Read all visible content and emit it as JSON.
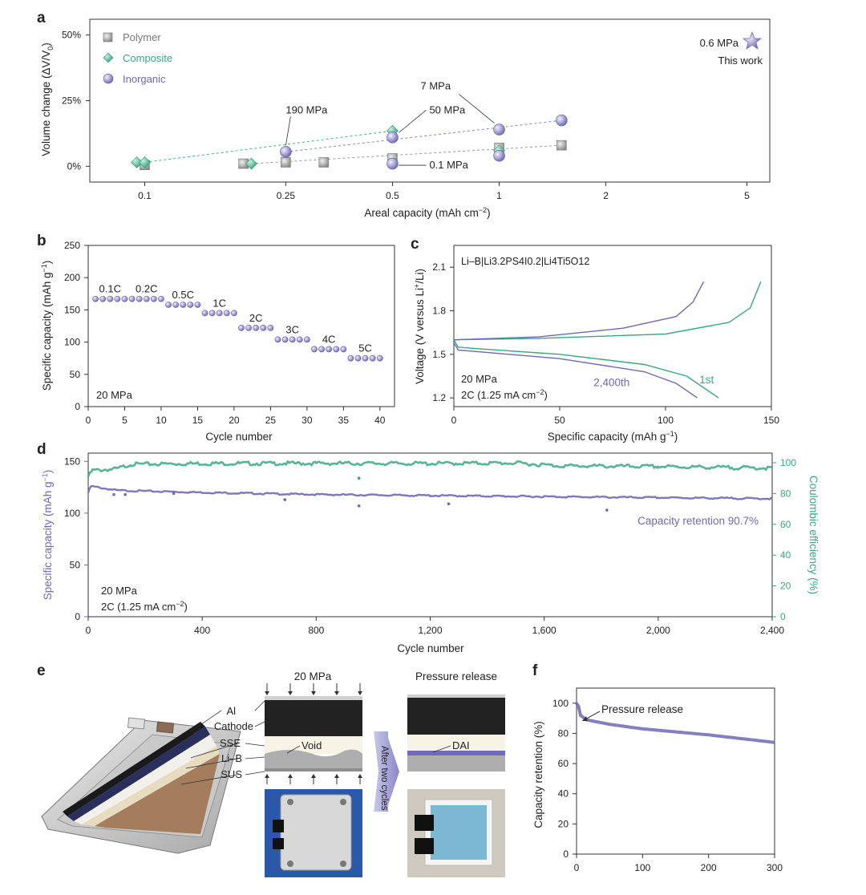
{
  "colors": {
    "polymer": "#9a9a9a",
    "composite": "#3db58f",
    "inorganic": "#8a84c8",
    "thiswork": "#8a84c8",
    "green": "#3aa87e",
    "purple": "#6f68b4"
  },
  "panel_labels": {
    "a": "a",
    "b": "b",
    "c": "c",
    "d": "d",
    "e": "e",
    "f": "f"
  },
  "chart_data": [
    {
      "panel": "a",
      "type": "scatter",
      "xlabel": "Areal capacity (mAh cm",
      "xlabel_sup": "−2",
      "xlabel_end": ")",
      "ylabel": "Volume change (ΔV/V",
      "ylabel_sub": "0",
      "ylabel_end": ")",
      "xscale": "log",
      "xticks": [
        0.1,
        0.25,
        0.5,
        1,
        2,
        5
      ],
      "xtick_labels": [
        "0.1",
        "0.25",
        "0.5",
        "1",
        "2",
        "5"
      ],
      "yticks": [
        0,
        25,
        50
      ],
      "ytick_labels": [
        "0%",
        "25%",
        "50%"
      ],
      "xlim": [
        0.07,
        5.8
      ],
      "ylim": [
        -6,
        56
      ],
      "legend": [
        {
          "name": "Polymer",
          "marker": "square"
        },
        {
          "name": "Composite",
          "marker": "diamond"
        },
        {
          "name": "Inorganic",
          "marker": "circle"
        }
      ],
      "series": [
        {
          "name": "Polymer",
          "points": [
            [
              0.1,
              0.5
            ],
            [
              0.19,
              1
            ],
            [
              0.25,
              1.5
            ],
            [
              0.32,
              1.5
            ],
            [
              0.5,
              3
            ],
            [
              1.0,
              7
            ],
            [
              1.5,
              8
            ]
          ]
        },
        {
          "name": "Composite",
          "points": [
            [
              0.095,
              1.5
            ],
            [
              0.1,
              1.5
            ],
            [
              0.2,
              1
            ],
            [
              0.5,
              13.5
            ],
            [
              1.0,
              6
            ]
          ]
        },
        {
          "name": "Inorganic",
          "points": [
            [
              0.25,
              5.5
            ],
            [
              0.5,
              11
            ],
            [
              0.5,
              1
            ],
            [
              1.0,
              4
            ],
            [
              1.0,
              14
            ],
            [
              1.5,
              17.5
            ]
          ]
        }
      ],
      "trend_lines": [
        {
          "color": "composite",
          "from": [
            0.1,
            1.5
          ],
          "to": [
            0.5,
            13.5
          ]
        },
        {
          "color": "inorganic",
          "from": [
            0.25,
            5.5
          ],
          "to": [
            1.5,
            17.5
          ]
        },
        {
          "color": "polymer",
          "from": [
            0.2,
            1
          ],
          "to": [
            1.5,
            8
          ]
        }
      ],
      "annotations": [
        {
          "text": "190 MPa",
          "x": 0.25,
          "y": 5.5
        },
        {
          "text": "7 MPa",
          "x": 1.0,
          "y": 14
        },
        {
          "text": "50 MPa",
          "x": 0.5,
          "y": 11
        },
        {
          "text": "0.1 MPa",
          "x": 0.5,
          "y": 1
        }
      ],
      "this_work": {
        "label": "0.6 MPa",
        "sublabel": "This work",
        "value": 0.6
      }
    },
    {
      "panel": "b",
      "type": "scatter",
      "xlabel": "Cycle number",
      "ylabel": "Specific capacity (mAh g",
      "ylabel_sup": "−1",
      "ylabel_end": ")",
      "xticks": [
        0,
        5,
        10,
        15,
        20,
        25,
        30,
        35,
        40
      ],
      "yticks": [
        0,
        50,
        100,
        150,
        200,
        250
      ],
      "xlim": [
        0,
        42
      ],
      "ylim": [
        0,
        250
      ],
      "condition": "20 MPa",
      "rate_groups": [
        {
          "label": "0.1C",
          "start": 1,
          "end": 5,
          "value": 167
        },
        {
          "label": "0.2C",
          "start": 6,
          "end": 10,
          "value": 167
        },
        {
          "label": "0.5C",
          "start": 11,
          "end": 15,
          "value": 158
        },
        {
          "label": "1C",
          "start": 16,
          "end": 20,
          "value": 145
        },
        {
          "label": "2C",
          "start": 21,
          "end": 25,
          "value": 122
        },
        {
          "label": "3C",
          "start": 26,
          "end": 30,
          "value": 104
        },
        {
          "label": "4C",
          "start": 31,
          "end": 35,
          "value": 89
        },
        {
          "label": "5C",
          "start": 36,
          "end": 40,
          "value": 75
        }
      ]
    },
    {
      "panel": "c",
      "type": "line",
      "xlabel": "Specific capacity (mAh g",
      "xlabel_sup": "−1",
      "xlabel_end": ")",
      "ylabel": "Voltage (V versus Li",
      "ylabel_sup": "+",
      "ylabel_end": "/Li)",
      "xticks": [
        0,
        50,
        100,
        150
      ],
      "yticks": [
        1.2,
        1.5,
        1.8,
        2.1
      ],
      "ytick_labels": [
        "1.2",
        "1.5",
        "1.8",
        "2.1"
      ],
      "xlim": [
        0,
        150
      ],
      "ylim": [
        1.14,
        2.25
      ],
      "cell_label": "Li–B|Li3.2PS4I0.2|Li4Ti5O12",
      "condition_1": "20 MPa",
      "condition_2": "2C (1.25 mA cm",
      "condition_2_sup": "−2",
      "condition_2_end": ")",
      "series": [
        {
          "name": "1st",
          "discharge": [
            [
              0,
              1.6
            ],
            [
              2,
              1.55
            ],
            [
              10,
              1.54
            ],
            [
              50,
              1.5
            ],
            [
              90,
              1.43
            ],
            [
              110,
              1.35
            ],
            [
              125,
              1.2
            ]
          ],
          "charge": [
            [
              0,
              1.6
            ],
            [
              40,
              1.61
            ],
            [
              100,
              1.64
            ],
            [
              130,
              1.72
            ],
            [
              140,
              1.82
            ],
            [
              145,
              2.0
            ]
          ]
        },
        {
          "name": "2,400th",
          "discharge": [
            [
              0,
              1.58
            ],
            [
              2,
              1.53
            ],
            [
              10,
              1.52
            ],
            [
              50,
              1.47
            ],
            [
              90,
              1.38
            ],
            [
              105,
              1.3
            ],
            [
              115,
              1.2
            ]
          ],
          "charge": [
            [
              0,
              1.6
            ],
            [
              40,
              1.62
            ],
            [
              80,
              1.68
            ],
            [
              105,
              1.76
            ],
            [
              113,
              1.86
            ],
            [
              118,
              2.0
            ]
          ]
        }
      ]
    },
    {
      "panel": "d",
      "type": "line",
      "xlabel": "Cycle number",
      "ylabel": "Specific capacity (mAh g",
      "ylabel_sup": "−1",
      "ylabel_end": ")",
      "y2label": "Coulombic efficiency (%)",
      "xticks": [
        0,
        400,
        800,
        1200,
        1600,
        2000,
        2400
      ],
      "xtick_labels": [
        "0",
        "400",
        "800",
        "1,200",
        "1,600",
        "2,000",
        "2,400"
      ],
      "yticks": [
        0,
        50,
        100,
        150
      ],
      "y2ticks": [
        0,
        20,
        40,
        60,
        80,
        100
      ],
      "xlim": [
        0,
        2400
      ],
      "ylim": [
        0,
        158
      ],
      "y2lim": [
        0,
        100
      ],
      "condition_1": "20 MPa",
      "condition_2": "2C (1.25 mA cm",
      "condition_2_sup": "−2",
      "condition_2_end": ")",
      "retention_label": "Capacity retention 90.7%",
      "series": [
        {
          "name": "Specific capacity",
          "points": [
            [
              0,
              120
            ],
            [
              10,
              126
            ],
            [
              100,
              122
            ],
            [
              400,
              120
            ],
            [
              800,
              118
            ],
            [
              1200,
              117
            ],
            [
              1600,
              116
            ],
            [
              2000,
              115
            ],
            [
              2400,
              114
            ]
          ],
          "outliers": [
            [
              90,
              118
            ],
            [
              130,
              118
            ],
            [
              300,
              119
            ],
            [
              690,
              113
            ],
            [
              950,
              107
            ],
            [
              1265,
              109
            ],
            [
              1820,
              103
            ]
          ]
        },
        {
          "name": "Coulombic efficiency",
          "points": [
            [
              0,
              91
            ],
            [
              15,
              95
            ],
            [
              100,
              96
            ],
            [
              150,
              99
            ],
            [
              400,
              99.5
            ],
            [
              800,
              99.6
            ],
            [
              1200,
              99.5
            ],
            [
              1500,
              99.8
            ],
            [
              1650,
              98
            ],
            [
              2000,
              97.5
            ],
            [
              2400,
              96.5
            ]
          ],
          "outliers": [
            [
              950,
              90
            ]
          ]
        }
      ]
    },
    {
      "panel": "f",
      "type": "line",
      "xlabel": "",
      "ylabel": "Capacity retention (%)",
      "xticks": [
        0,
        100,
        200,
        300
      ],
      "yticks": [
        0,
        20,
        40,
        60,
        80,
        100
      ],
      "xlim": [
        0,
        300
      ],
      "ylim": [
        0,
        110
      ],
      "annotation": "Pressure release",
      "series": [
        {
          "name": "Capacity retention",
          "points": [
            [
              0,
              100
            ],
            [
              3,
              98
            ],
            [
              6,
              92
            ],
            [
              15,
              89
            ],
            [
              50,
              86
            ],
            [
              100,
              83
            ],
            [
              200,
              79
            ],
            [
              300,
              74
            ]
          ]
        }
      ]
    }
  ],
  "panel_e": {
    "pressure_label": "20 MPa",
    "release_label": "Pressure release",
    "layers": [
      "Al",
      "Cathode",
      "SSE",
      "Li–B",
      "SUS"
    ],
    "void_label": "Void",
    "dai_label": "DAI",
    "arrow_label": "After two cycles"
  }
}
